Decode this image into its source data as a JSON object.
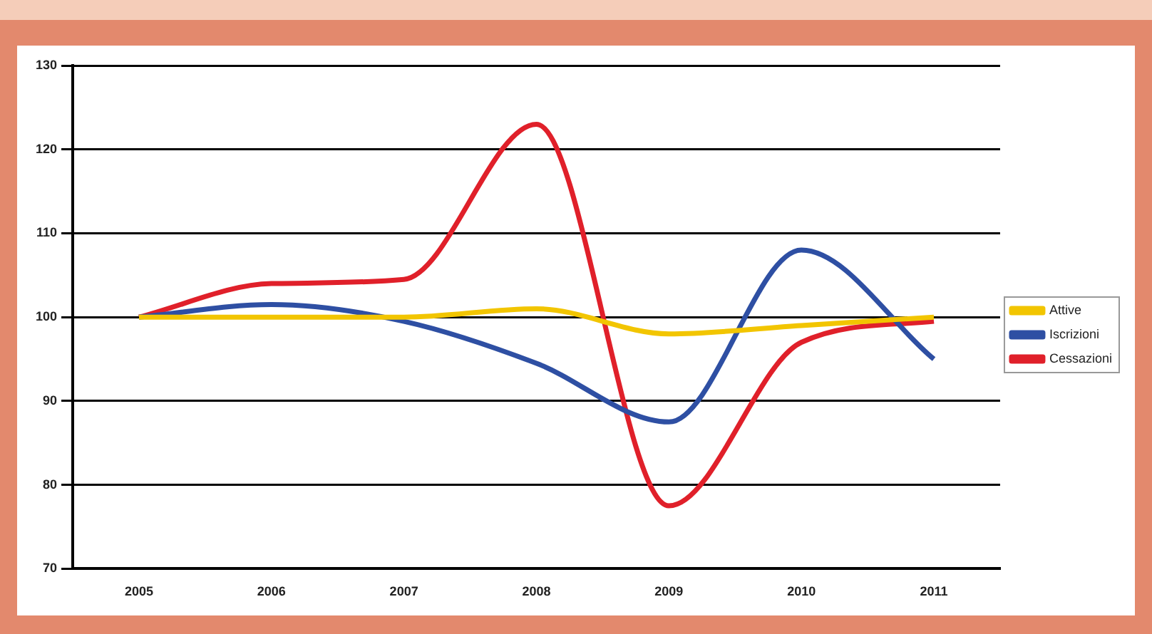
{
  "chart_data": {
    "type": "line",
    "categories": [
      "2005",
      "2006",
      "2007",
      "2008",
      "2009",
      "2010",
      "2011"
    ],
    "series": [
      {
        "name": "Attive",
        "color": "#f2c500",
        "values": [
          100,
          100,
          100,
          101,
          98,
          99,
          100
        ]
      },
      {
        "name": "Iscrizioni",
        "color": "#2e4fa3",
        "values": [
          100,
          101.5,
          99.5,
          94.5,
          87.5,
          108,
          95
        ]
      },
      {
        "name": "Cessazioni",
        "color": "#e0202a",
        "values": [
          100,
          104,
          104.5,
          123,
          77.5,
          97,
          99.5
        ]
      }
    ],
    "ylim": [
      70,
      130
    ],
    "yticks": [
      70,
      80,
      90,
      100,
      110,
      120,
      130
    ],
    "grid": "y",
    "legend": "right",
    "marker": "none"
  }
}
